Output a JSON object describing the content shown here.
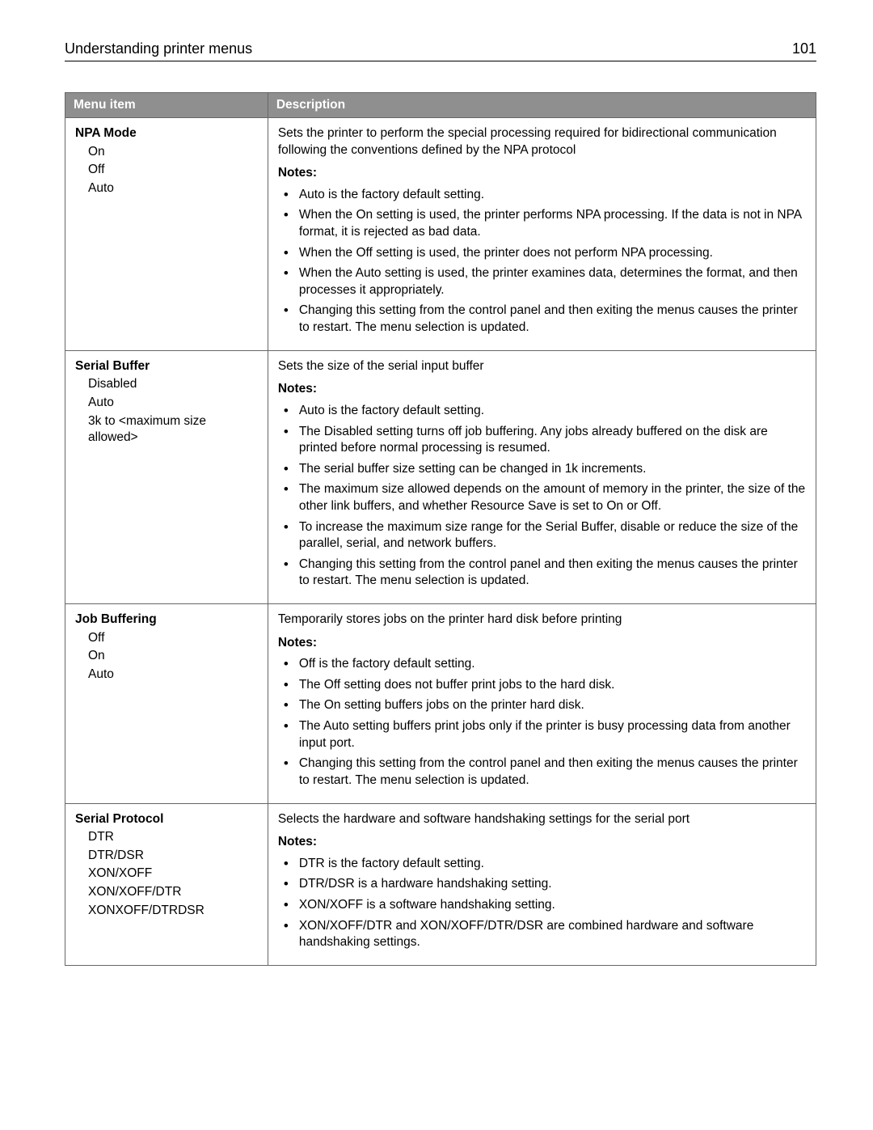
{
  "page": {
    "header_title": "Understanding printer menus",
    "page_number": "101"
  },
  "table": {
    "columns": {
      "menu_item": "Menu item",
      "description": "Description"
    },
    "rows": [
      {
        "title": "NPA Mode",
        "options": [
          "On",
          "Off",
          "Auto"
        ],
        "lead": "Sets the printer to perform the special processing required for bidirectional communication following the conventions defined by the NPA protocol",
        "notes_label": "Notes:",
        "notes": [
          "Auto is the factory default setting.",
          "When the On setting is used, the printer performs NPA processing. If the data is not in NPA format, it is rejected as bad data.",
          "When the Off setting is used, the printer does not perform NPA processing.",
          "When the Auto setting is used, the printer examines data, determines the format, and then processes it appropriately.",
          "Changing this setting from the control panel and then exiting the menus causes the printer to restart. The menu selection is updated."
        ]
      },
      {
        "title": "Serial Buffer",
        "options": [
          "Disabled",
          "Auto",
          "3k to <maximum size allowed>"
        ],
        "lead": "Sets the size of the serial input buffer",
        "notes_label": "Notes:",
        "notes": [
          "Auto is the factory default setting.",
          "The Disabled setting turns off job buffering. Any jobs already buffered on the disk are printed before normal processing is resumed.",
          "The serial buffer size setting can be changed in 1k increments.",
          "The maximum size allowed depends on the amount of memory in the printer, the size of the other link buffers, and whether Resource Save is set to On or Off.",
          "To increase the maximum size range for the Serial Buffer, disable or reduce the size of the parallel, serial, and network buffers.",
          "Changing this setting from the control panel and then exiting the menus causes the printer to restart. The menu selection is updated."
        ]
      },
      {
        "title": "Job Buffering",
        "options": [
          "Off",
          "On",
          "Auto"
        ],
        "lead": "Temporarily stores jobs on the printer hard disk before printing",
        "notes_label": "Notes:",
        "notes": [
          "Off is the factory default setting.",
          "The Off setting does not buffer print jobs to the hard disk.",
          "The On setting buffers jobs on the printer hard disk.",
          "The Auto setting buffers print jobs only if the printer is busy processing data from another input port.",
          "Changing this setting from the control panel and then exiting the menus causes the printer to restart. The menu selection is updated."
        ]
      },
      {
        "title": "Serial Protocol",
        "options": [
          "DTR",
          "DTR/DSR",
          "XON/XOFF",
          "XON/XOFF/DTR",
          "XONXOFF/DTRDSR"
        ],
        "lead": "Selects the hardware and software handshaking settings for the serial port",
        "notes_label": "Notes:",
        "notes": [
          "DTR is the factory default setting.",
          "DTR/DSR is a hardware handshaking setting.",
          "XON/XOFF is a software handshaking setting.",
          "XON/XOFF/DTR and XON/XOFF/DTR/DSR are combined hardware and software handshaking settings."
        ]
      }
    ]
  }
}
